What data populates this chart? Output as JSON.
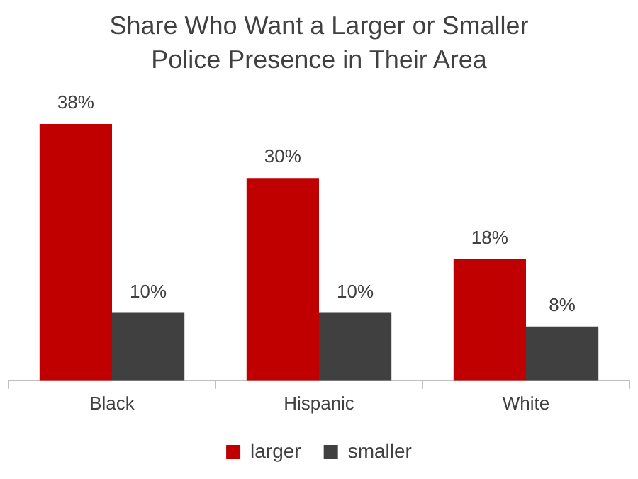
{
  "chart_data": {
    "type": "bar",
    "title": "Share Who Want a Larger or Smaller Police Presence in Their Area",
    "categories": [
      "Black",
      "Hispanic",
      "White"
    ],
    "legend": "bottom",
    "series": [
      {
        "name": "larger",
        "color": "#c00000",
        "values": [
          38,
          30,
          18
        ],
        "value_labels": [
          "38%",
          "30%",
          "18%"
        ]
      },
      {
        "name": "smaller",
        "color": "#404040",
        "values": [
          10,
          10,
          8
        ],
        "value_labels": [
          "10%",
          "10%",
          "8%"
        ]
      }
    ]
  }
}
